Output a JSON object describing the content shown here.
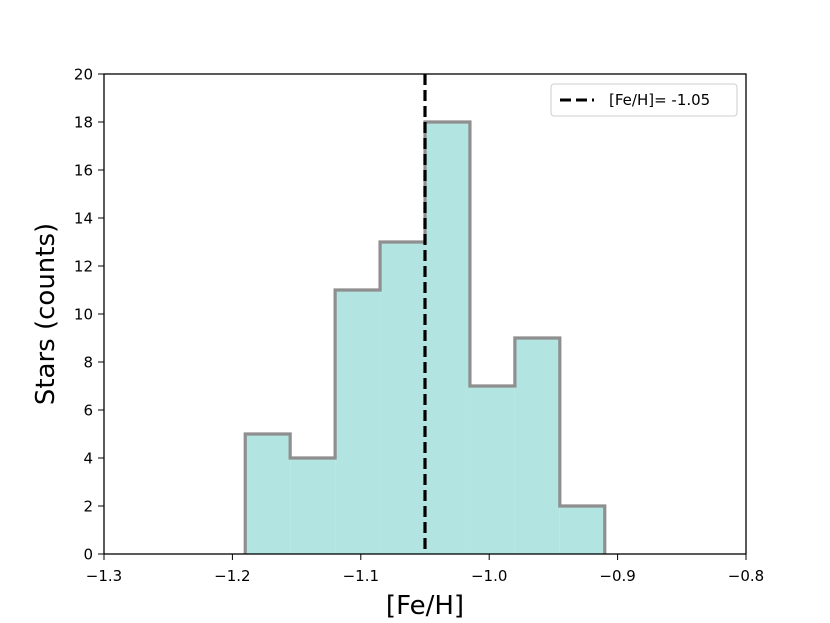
{
  "chart_data": {
    "type": "histogram",
    "xlabel": "[Fe/H]",
    "ylabel": "Stars (counts)",
    "xlim": [
      -1.3,
      -0.8
    ],
    "ylim": [
      0,
      20
    ],
    "x_ticks": [
      -1.3,
      -1.2,
      -1.1,
      -1.0,
      -0.9,
      -0.8
    ],
    "x_tick_labels": [
      "−1.3",
      "−1.2",
      "−1.1",
      "−1.0",
      "−0.9",
      "−0.8"
    ],
    "y_ticks": [
      0,
      2,
      4,
      6,
      8,
      10,
      12,
      14,
      16,
      18,
      20
    ],
    "y_tick_labels": [
      "0",
      "2",
      "4",
      "6",
      "8",
      "10",
      "12",
      "14",
      "16",
      "18",
      "20"
    ],
    "bin_edges": [
      -1.19,
      -1.155,
      -1.12,
      -1.085,
      -1.05,
      -1.015,
      -0.98,
      -0.945,
      -0.91
    ],
    "counts": [
      5,
      4,
      11,
      13,
      18,
      7,
      9,
      2
    ],
    "fill_color": "#b2e5e1",
    "edge_color": "#8f8f8f",
    "reference_line": {
      "x": -1.05,
      "style": "dashed",
      "color": "#000000",
      "label": "[Fe/H]= -1.05"
    },
    "legend_position": "top-right",
    "grid": false
  }
}
